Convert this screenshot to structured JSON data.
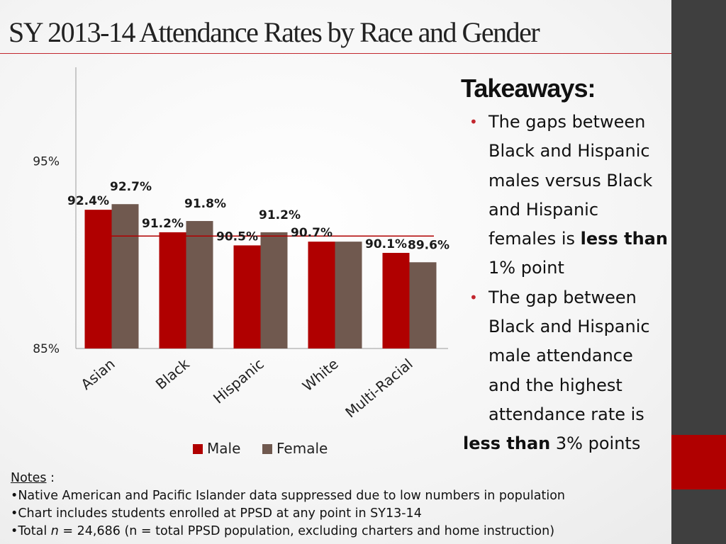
{
  "title": "SY 2013-14 Attendance Rates by Race and Gender",
  "colors": {
    "male": "#B00000",
    "female": "#70594F",
    "rule": "#C2262E",
    "sidebar": "#3F3F3F"
  },
  "chart_data": {
    "type": "bar",
    "categories": [
      "Asian",
      "Black",
      "Hispanic",
      "White",
      "Multi-Racial"
    ],
    "series": [
      {
        "name": "Male",
        "values": [
          92.4,
          91.2,
          90.5,
          90.7,
          90.1
        ]
      },
      {
        "name": "Female",
        "values": [
          92.7,
          91.8,
          91.2,
          90.7,
          89.6
        ]
      }
    ],
    "value_labels": {
      "Male": [
        "92.4%",
        "91.2%",
        "90.5%",
        "90.7%",
        "90.1%"
      ],
      "Female": [
        "92.7%",
        "91.8%",
        "91.2%",
        "",
        "89.6%"
      ]
    },
    "y_ticks": [
      85,
      95
    ],
    "y_tick_labels": [
      "85%",
      "95%"
    ],
    "ylim": [
      85,
      100
    ],
    "reference_line": 91.0,
    "legend_position": "bottom-center"
  },
  "takeaways": {
    "heading": "Takeaways:",
    "item1": {
      "line1": "The gaps between",
      "line2": "Black and Hispanic",
      "line3": "males versus Black",
      "line4": "and Hispanic",
      "line5_pre": "females is ",
      "line5_bold": "less than",
      "line6": "1% point"
    },
    "item2": {
      "line1": " The gap between",
      "line2": "Black and Hispanic",
      "line3": "male attendance",
      "line4": "and the highest",
      "line5": "attendance rate is",
      "line6_bold": "less than",
      "line6_rest": " 3% points"
    }
  },
  "notes": {
    "label": "Notes",
    "label_suffix": " :",
    "items": [
      "Native American and Pacific Islander data suppressed due to low numbers in population",
      "Chart includes students enrolled at PPSD at any  point in SY13-14"
    ],
    "total_pre": "Total ",
    "total_n": "n",
    "total_post": " = 24,686 (n = total  PPSD population, excluding charters and home instruction)"
  }
}
